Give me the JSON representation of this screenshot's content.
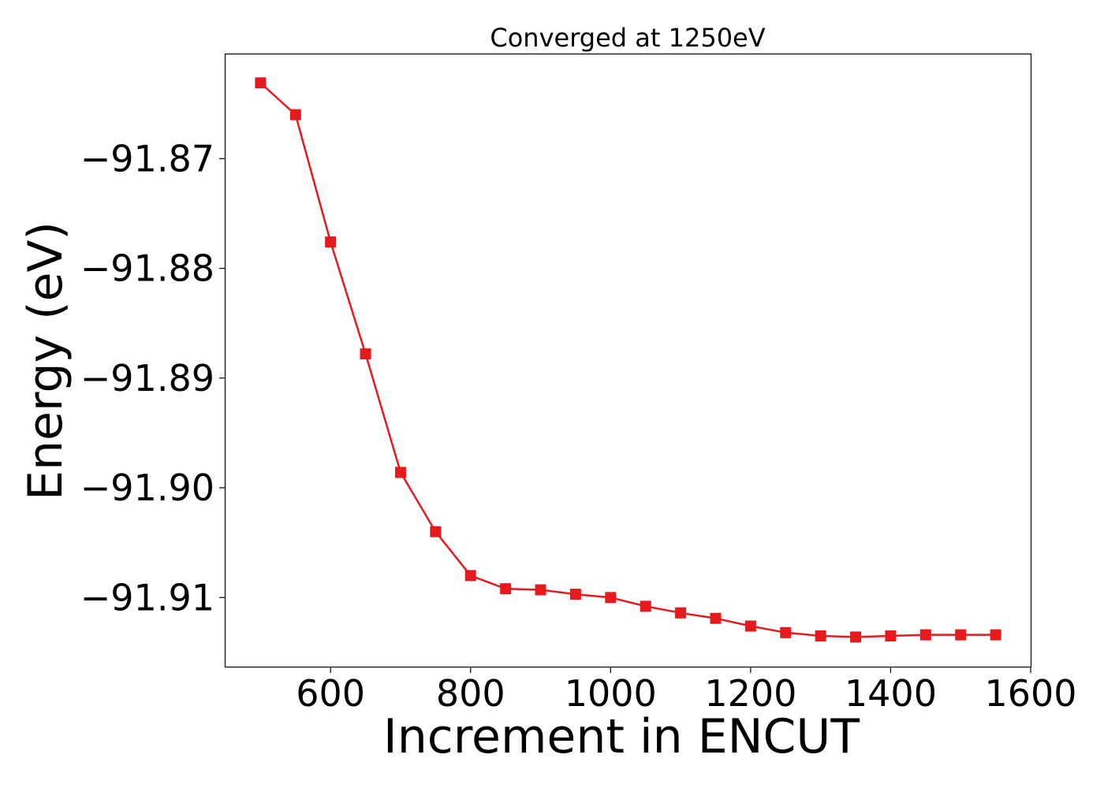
{
  "chart_data": {
    "type": "line",
    "title": "Converged at 1250eV",
    "xlabel": "Increment in ENCUT",
    "ylabel": "Energy (eV)",
    "xlim": [
      450,
      1600
    ],
    "ylim": [
      -91.9163,
      -91.8605
    ],
    "xticks": [
      600,
      800,
      1000,
      1200,
      1400,
      1600
    ],
    "xtick_labels": [
      "600",
      "800",
      "1000",
      "1200",
      "1400",
      "1600"
    ],
    "yticks": [
      -91.87,
      -91.88,
      -91.89,
      -91.9,
      -91.91
    ],
    "ytick_labels": [
      "−91.87",
      "−91.88",
      "−91.89",
      "−91.90",
      "−91.91"
    ],
    "grid": false,
    "series": [
      {
        "color": "#e41a1c",
        "marker": "square",
        "x": [
          500,
          550,
          600,
          650,
          700,
          750,
          800,
          850,
          900,
          950,
          1000,
          1050,
          1100,
          1150,
          1200,
          1250,
          1300,
          1350,
          1400,
          1450,
          1500,
          1550
        ],
        "y": [
          -91.8631,
          -91.866,
          -91.8776,
          -91.8878,
          -91.8986,
          -91.904,
          -91.908,
          -91.9092,
          -91.9093,
          -91.9097,
          -91.91,
          -91.9108,
          -91.9114,
          -91.9119,
          -91.9126,
          -91.9132,
          -91.9135,
          -91.9136,
          -91.9135,
          -91.9134,
          -91.9134,
          -91.9134
        ]
      }
    ]
  }
}
